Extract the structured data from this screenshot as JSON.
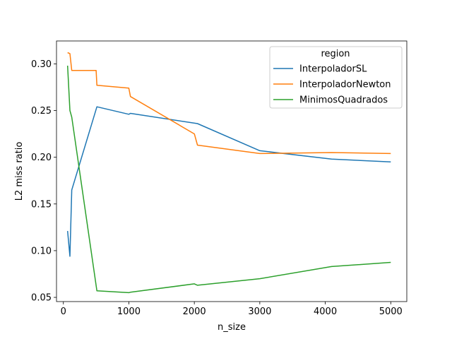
{
  "chart_data": {
    "type": "line",
    "xlabel": "n_size",
    "ylabel": "L2 miss ratio",
    "xlim": [
      -105,
      5245
    ],
    "ylim": [
      0.0455,
      0.3245
    ],
    "xticks": [
      0,
      1000,
      2000,
      3000,
      4000,
      5000
    ],
    "yticks": [
      0.05,
      0.1,
      0.15,
      0.2,
      0.25,
      0.3
    ],
    "xtick_labels": [
      "0",
      "1000",
      "2000",
      "3000",
      "4000",
      "5000"
    ],
    "ytick_labels": [
      "0.05",
      "0.10",
      "0.15",
      "0.20",
      "0.25",
      "0.30"
    ],
    "grid": false,
    "legend": {
      "title": "region",
      "placement": "upper-right"
    },
    "series": [
      {
        "name": "InterpoladorSL",
        "color": "#1f77b4",
        "x": [
          64,
          100,
          128,
          512,
          1000,
          1024,
          2048,
          3000,
          4096,
          5000
        ],
        "y": [
          0.121,
          0.094,
          0.165,
          0.254,
          0.246,
          0.247,
          0.236,
          0.207,
          0.198,
          0.195
        ]
      },
      {
        "name": "InterpoladorNewton",
        "color": "#ff7f0e",
        "x": [
          64,
          100,
          128,
          500,
          512,
          1000,
          1024,
          2000,
          2048,
          3000,
          4096,
          5000
        ],
        "y": [
          0.312,
          0.311,
          0.293,
          0.293,
          0.277,
          0.274,
          0.265,
          0.225,
          0.213,
          0.204,
          0.205,
          0.204
        ]
      },
      {
        "name": "MinimosQuadrados",
        "color": "#2ca02c",
        "x": [
          64,
          100,
          128,
          512,
          1000,
          1024,
          2000,
          2048,
          3000,
          4096,
          5000
        ],
        "y": [
          0.298,
          0.25,
          0.243,
          0.057,
          0.055,
          0.0555,
          0.0645,
          0.063,
          0.07,
          0.083,
          0.0875
        ]
      }
    ]
  }
}
